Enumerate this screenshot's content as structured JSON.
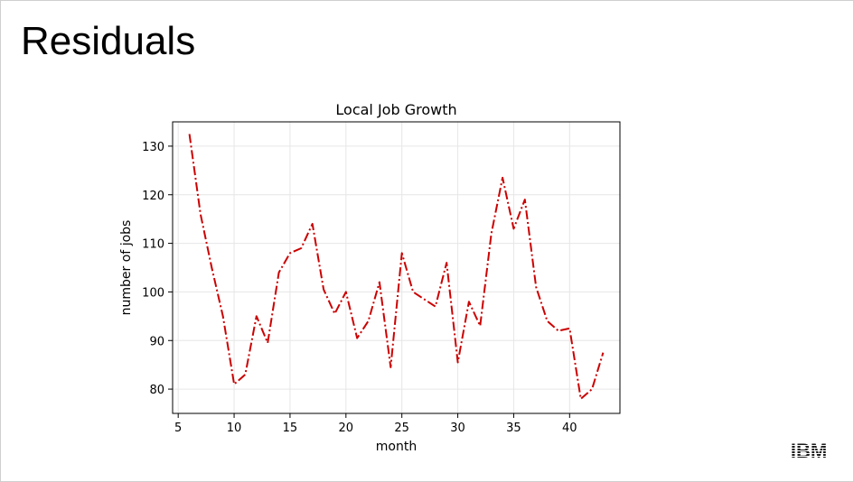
{
  "slide": {
    "title": "Residuals",
    "logo_text": "IBM"
  },
  "chart_data": {
    "type": "line",
    "title": "Local Job Growth",
    "xlabel": "month",
    "ylabel": "number of jobs",
    "xlim": [
      4.5,
      44.5
    ],
    "ylim": [
      75,
      135
    ],
    "xticks": [
      5,
      10,
      15,
      20,
      25,
      30,
      35,
      40
    ],
    "yticks": [
      80,
      90,
      100,
      110,
      120,
      130
    ],
    "grid": true,
    "series": [
      {
        "color": "#cc0000",
        "line_style": "dash-dot",
        "x": [
          6,
          7,
          8,
          9,
          10,
          11,
          12,
          13,
          14,
          15,
          16,
          17,
          18,
          19,
          20,
          21,
          22,
          23,
          24,
          25,
          26,
          27,
          28,
          29,
          30,
          31,
          32,
          33,
          34,
          35,
          36,
          37,
          38,
          39,
          40,
          41,
          42,
          43
        ],
        "y": [
          132.5,
          116,
          105,
          95,
          81,
          83,
          95,
          89.5,
          104,
          108,
          109,
          114,
          100.5,
          95.5,
          100,
          90.5,
          94,
          102,
          84.5,
          108,
          100,
          98.5,
          97,
          106,
          85.5,
          98,
          93,
          112,
          123.5,
          113,
          119,
          101,
          94,
          92,
          92.5,
          78,
          80,
          87.5
        ]
      }
    ]
  }
}
